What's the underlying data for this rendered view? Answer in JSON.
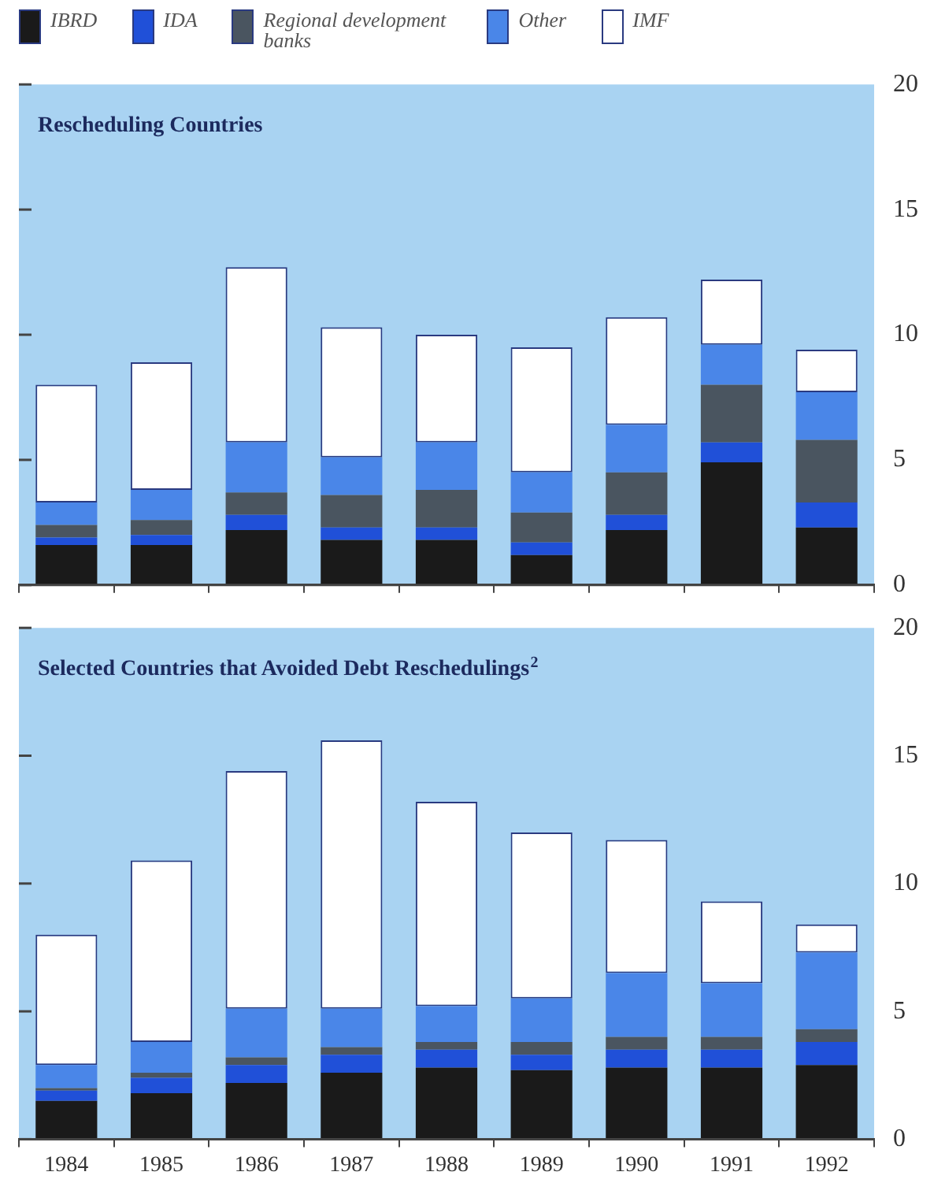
{
  "chart_data": [
    {
      "type": "bar",
      "title": "Rescheduling Countries",
      "stacked": true,
      "legend": "top",
      "tick_labels": "y",
      "categories": [
        "1984",
        "1985",
        "1986",
        "1987",
        "1988",
        "1989",
        "1990",
        "1991",
        "1992"
      ],
      "ylim": [
        0,
        20
      ],
      "yticks": [
        0,
        5,
        10,
        15,
        20
      ],
      "series": [
        {
          "name": "IBRD",
          "color": "#1a1a1a",
          "values": [
            1.6,
            1.6,
            2.2,
            1.8,
            1.8,
            1.2,
            2.2,
            4.9,
            2.3
          ]
        },
        {
          "name": "IDA",
          "color": "#2050d8",
          "values": [
            0.3,
            0.4,
            0.6,
            0.5,
            0.5,
            0.5,
            0.6,
            0.8,
            1.0
          ]
        },
        {
          "name": "Regional development banks",
          "color": "#4a5560",
          "values": [
            0.5,
            0.6,
            0.9,
            1.3,
            1.5,
            1.2,
            1.7,
            2.3,
            2.5
          ]
        },
        {
          "name": "Other",
          "color": "#4a86e8",
          "values": [
            0.9,
            1.2,
            2.0,
            1.5,
            1.9,
            1.6,
            1.9,
            1.6,
            1.9
          ]
        },
        {
          "name": "IMF",
          "color": "#ffffff",
          "values": [
            4.7,
            5.1,
            7.0,
            5.2,
            4.3,
            5.0,
            4.3,
            2.6,
            1.7
          ]
        }
      ]
    },
    {
      "type": "bar",
      "title": "Selected Countries that Avoided Debt Reschedulings$^{2}$",
      "stacked": true,
      "categories": [
        "1984",
        "1985",
        "1986",
        "1987",
        "1988",
        "1989",
        "1990",
        "1991",
        "1992"
      ],
      "ylim": [
        0,
        20
      ],
      "yticks": [
        0,
        5,
        10,
        15,
        20
      ],
      "series": [
        {
          "color": "#1a1a1a",
          "values": [
            1.5,
            1.8,
            2.2,
            2.6,
            2.8,
            2.7,
            2.8,
            2.8,
            2.9
          ]
        },
        {
          "color": "#2050d8",
          "values": [
            0.4,
            0.6,
            0.7,
            0.7,
            0.7,
            0.6,
            0.7,
            0.7,
            0.9
          ]
        },
        {
          "color": "#4a5560",
          "values": [
            0.1,
            0.2,
            0.3,
            0.3,
            0.3,
            0.5,
            0.5,
            0.5,
            0.5
          ]
        },
        {
          "color": "#4a86e8",
          "values": [
            0.9,
            1.2,
            1.9,
            1.5,
            1.4,
            1.7,
            2.5,
            2.1,
            3.0
          ]
        },
        {
          "color": "#ffffff",
          "values": [
            5.1,
            7.1,
            9.3,
            10.5,
            8.0,
            6.5,
            5.2,
            3.2,
            1.1
          ]
        }
      ]
    }
  ]
}
